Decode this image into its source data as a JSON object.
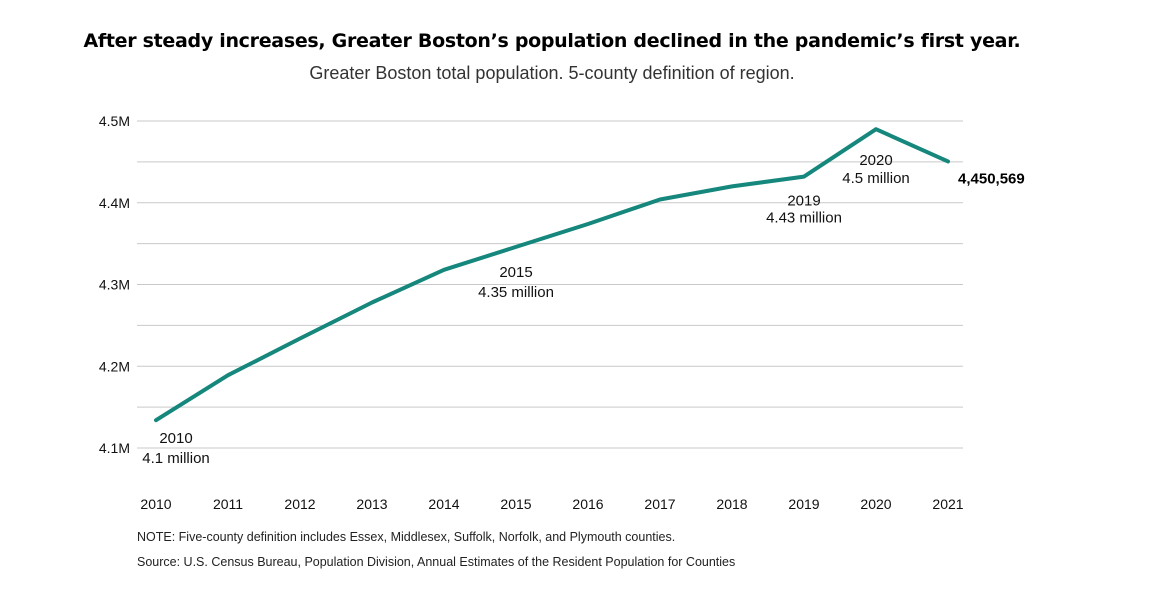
{
  "title": "After steady increases, Greater Boston’s population declined in the pandemic’s first year.",
  "subtitle": "Greater Boston total population. 5-county definition of region.",
  "note": "NOTE: Five-county definition includes Essex, Middlesex, Suffolk, Norfolk, and Plymouth counties.",
  "source": "Source: U.S. Census Bureau, Population Division, Annual Estimates of the Resident Population for Counties",
  "colors": {
    "line": "#16877c",
    "grid": "#c9c9c9"
  },
  "chart_data": {
    "type": "line",
    "x": [
      "2010",
      "2011",
      "2012",
      "2013",
      "2014",
      "2015",
      "2016",
      "2017",
      "2018",
      "2019",
      "2020",
      "2021"
    ],
    "series": [
      {
        "values": [
          4134000,
          4189000,
          4234000,
          4278000,
          4318000,
          4346000,
          4374000,
          4404000,
          4420000,
          4432000,
          4490000,
          4450569
        ]
      }
    ],
    "ylim": [
      4.1,
      4.5
    ],
    "yticks": [
      {
        "value": 4100000,
        "label": "4.1M"
      },
      {
        "value": 4200000,
        "label": "4.2M"
      },
      {
        "value": 4300000,
        "label": "4.3M"
      },
      {
        "value": 4400000,
        "label": "4.4M"
      },
      {
        "value": 4500000,
        "label": "4.5M"
      }
    ],
    "grid": true,
    "annotations": [
      {
        "year": "2010",
        "line1": "2010",
        "line2": "4.1 million"
      },
      {
        "year": "2015",
        "line1": "2015",
        "line2": "4.35 million"
      },
      {
        "year": "2019",
        "line1": "2019",
        "line2": "4.43 million"
      },
      {
        "year": "2020",
        "line1": "2020",
        "line2": "4.5 million"
      }
    ],
    "end_label": "4,450,569"
  }
}
